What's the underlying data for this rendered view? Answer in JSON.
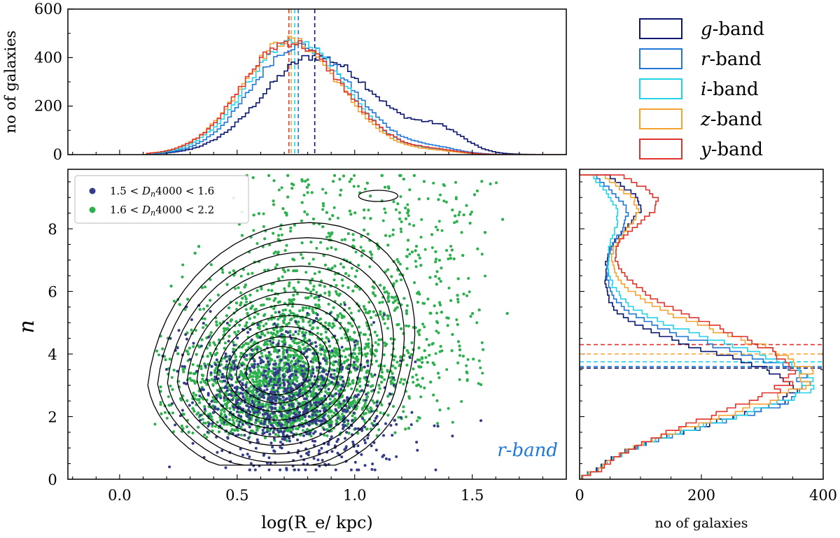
{
  "chart_data": [
    {
      "type": "histogram",
      "panel": "top",
      "ylabel": "no of galaxies",
      "xlim": [
        -0.22,
        1.9
      ],
      "ylim": [
        0,
        600
      ],
      "yticks": [
        "0",
        "200",
        "400",
        "600"
      ],
      "bin_start": 0.1,
      "bin_end": 1.9,
      "bin_width": 0.015,
      "medians": [
        {
          "band": "g",
          "value": 0.83
        },
        {
          "band": "r",
          "value": 0.76
        },
        {
          "band": "i",
          "value": 0.745
        },
        {
          "band": "z",
          "value": 0.73
        },
        {
          "band": "y",
          "value": 0.72
        }
      ],
      "series": [
        {
          "name": "g-band",
          "color": "#0a1670",
          "peak_x": 0.83,
          "peak": 405,
          "sigma_left": 0.22,
          "sigma_right": 0.26,
          "bump_x": 1.37,
          "bump_amp": 75,
          "bump_sigma": 0.1
        },
        {
          "name": "r-band",
          "color": "#1f78d8",
          "peak_x": 0.76,
          "peak": 450,
          "sigma_left": 0.2,
          "sigma_right": 0.23,
          "bump_x": 1.35,
          "bump_amp": 20,
          "bump_sigma": 0.1
        },
        {
          "name": "i-band",
          "color": "#22d3e8",
          "peak_x": 0.74,
          "peak": 470,
          "sigma_left": 0.2,
          "sigma_right": 0.22,
          "bump_x": 1.35,
          "bump_amp": 12,
          "bump_sigma": 0.1
        },
        {
          "name": "z-band",
          "color": "#f5a231",
          "peak_x": 0.72,
          "peak": 470,
          "sigma_left": 0.2,
          "sigma_right": 0.22,
          "bump_x": 1.35,
          "bump_amp": 12,
          "bump_sigma": 0.1
        },
        {
          "name": "y-band",
          "color": "#e0332b",
          "peak_x": 0.72,
          "peak": 465,
          "sigma_left": 0.2,
          "sigma_right": 0.23,
          "bump_x": 1.35,
          "bump_amp": 15,
          "bump_sigma": 0.1
        }
      ]
    },
    {
      "type": "scatter",
      "panel": "main",
      "xlabel": "log(R_e/ kpc)",
      "ylabel": "n",
      "xlim": [
        -0.22,
        1.9
      ],
      "ylim": [
        0,
        9.9
      ],
      "xticks": [
        "0.0",
        "0.5",
        "1.0",
        "1.5"
      ],
      "yticks": [
        "0",
        "2",
        "4",
        "6",
        "8"
      ],
      "annotation": "r-band",
      "series": [
        {
          "name": "1.5 < Dn4000 < 1.6",
          "color": "#353c8a",
          "count": 900,
          "center_x": 0.7,
          "center_y": 2.5,
          "sd_x": 0.2,
          "sd_y": 1.3
        },
        {
          "name": "1.6 < Dn4000 < 2.2",
          "color": "#2fb04f",
          "count": 5200,
          "center_x": 0.72,
          "center_y": 3.6,
          "sd_x": 0.27,
          "sd_y": 2.2
        }
      ],
      "contours": {
        "count": 11,
        "center_x": 0.67,
        "center_y": 3.4
      }
    },
    {
      "type": "histogram",
      "panel": "right",
      "orientation": "horizontal",
      "xlabel": "no of galaxies",
      "xlim": [
        0,
        400
      ],
      "ylim": [
        0,
        9.9
      ],
      "xticks": [
        "0",
        "200",
        "400"
      ],
      "bin_width": 0.12,
      "medians": [
        {
          "band": "g",
          "value": 3.55
        },
        {
          "band": "r",
          "value": 3.6
        },
        {
          "band": "i",
          "value": 3.75
        },
        {
          "band": "z",
          "value": 4.0
        },
        {
          "band": "y",
          "value": 4.3
        }
      ],
      "series": [
        {
          "name": "g-band",
          "color": "#0a1670",
          "main_n": 2.9,
          "main_amp": 350,
          "main_sigma": 1.15,
          "tail_n": 8.8,
          "tail_amp": 80
        },
        {
          "name": "r-band",
          "color": "#1f78d8",
          "main_n": 3.0,
          "main_amp": 370,
          "main_sigma": 1.2,
          "tail_n": 8.6,
          "tail_amp": 55
        },
        {
          "name": "i-band",
          "color": "#22d3e8",
          "main_n": 3.1,
          "main_amp": 375,
          "main_sigma": 1.25,
          "tail_n": 8.6,
          "tail_amp": 40
        },
        {
          "name": "z-band",
          "color": "#f5a231",
          "main_n": 3.3,
          "main_amp": 370,
          "main_sigma": 1.35,
          "tail_n": 8.7,
          "tail_amp": 75
        },
        {
          "name": "y-band",
          "color": "#e0332b",
          "main_n": 3.4,
          "main_amp": 345,
          "main_sigma": 1.45,
          "tail_n": 8.9,
          "tail_amp": 110
        }
      ]
    }
  ],
  "legend": {
    "items": [
      {
        "italic": "g",
        "suffix": "-band",
        "color": "#0a1670"
      },
      {
        "italic": "r",
        "suffix": "-band",
        "color": "#1f78d8"
      },
      {
        "italic": "i",
        "suffix": "-band",
        "color": "#22d3e8"
      },
      {
        "italic": "z",
        "suffix": "-band",
        "color": "#f5a231"
      },
      {
        "italic": "y",
        "suffix": "-band",
        "color": "#e0332b"
      }
    ]
  },
  "scatter_legend": {
    "items": [
      {
        "lo": "1.5",
        "hi": "1.6",
        "color": "#353c8a"
      },
      {
        "lo": "1.6",
        "hi": "2.2",
        "color": "#2fb04f"
      }
    ]
  }
}
